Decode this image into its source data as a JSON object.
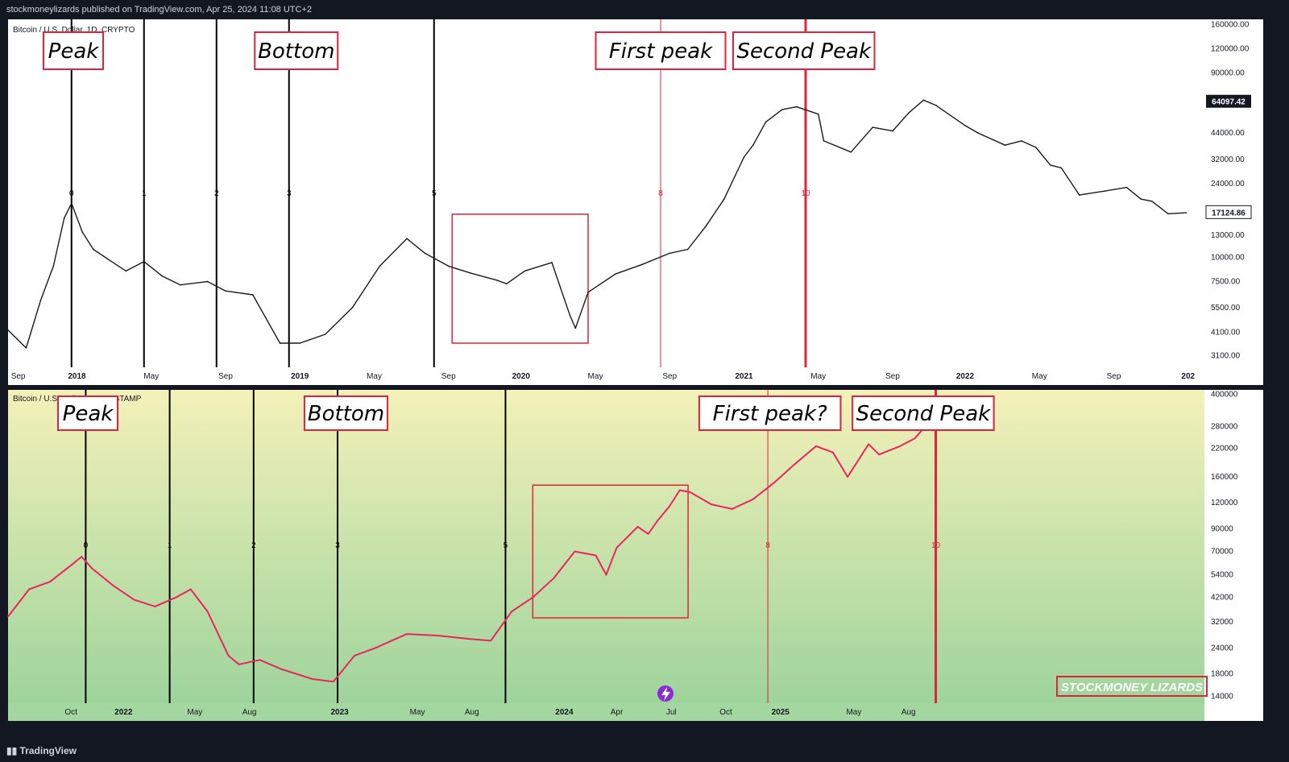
{
  "header": {
    "published": "stockmoneylizards published on TradingView.com, Apr 25, 2024 11:08 UTC+2"
  },
  "footer": {
    "brand": "TradingView"
  },
  "watermark": "STOCKMONEY LIZARDS",
  "colors": {
    "frame": "#131722",
    "red_line": "#e0233a",
    "pink_series": "#e8255f",
    "annotation_border": "#e0233a",
    "grad_top": "#f3f1b9",
    "grad_bottom": "#9ed49c"
  },
  "chart_data": [
    {
      "type": "line",
      "title": "Bitcoin / U.S. Dollar, 1D, CRYPTO",
      "scale": "log",
      "ylim": [
        2700,
        170000
      ],
      "y_ticks": [
        160000,
        120000,
        90000,
        44000,
        32000,
        24000,
        13000,
        10000,
        7500,
        5500,
        4100,
        3100
      ],
      "price_labels": [
        {
          "label": "64097.42",
          "value": 64097,
          "style": "dark"
        },
        {
          "label": "17124.86",
          "value": 17125,
          "style": "light"
        }
      ],
      "time_labels": [
        "Sep",
        "2018",
        "May",
        "Sep",
        "2019",
        "May",
        "Sep",
        "2020",
        "May",
        "Sep",
        "2021",
        "May",
        "Sep",
        "2022",
        "May",
        "Sep",
        "202"
      ],
      "x_ticks": [
        0.06,
        3.3,
        7.4,
        11.5,
        15.6,
        19.7,
        23.8,
        27.8,
        31.9,
        36.0,
        40.1,
        44.2,
        48.3,
        52.3,
        56.4,
        60.5,
        64.6
      ],
      "xlim": [
        -0.5,
        65.5
      ],
      "x": [
        -0.5,
        0.5,
        1.3,
        2.0,
        2.6,
        3.0,
        3.6,
        4.2,
        5.0,
        6.0,
        7.0,
        8.0,
        9.0,
        10.5,
        11.5,
        13.0,
        14.5,
        15.6,
        17.0,
        18.5,
        20.0,
        21.5,
        22.5,
        23.8,
        25.0,
        26.5,
        27.0,
        28.0,
        29.5,
        30.5,
        30.8,
        31.5,
        33.0,
        34.5,
        36.0,
        37.0,
        38.0,
        39.0,
        40.1,
        40.6,
        41.3,
        42.2,
        43.0,
        44.2,
        44.5,
        46.0,
        47.2,
        48.3,
        49.2,
        50.0,
        50.7,
        52.3,
        53.0,
        54.5,
        55.4,
        56.2,
        57.0,
        57.6,
        58.6,
        60.0,
        61.2,
        62.0,
        62.6,
        63.5,
        64.5
      ],
      "y": [
        4200,
        3400,
        6000,
        9000,
        16000,
        19000,
        13500,
        11000,
        9800,
        8500,
        9500,
        8000,
        7200,
        7500,
        6700,
        6400,
        3600,
        3600,
        4000,
        5500,
        9000,
        12500,
        10500,
        9000,
        8300,
        7600,
        7300,
        8500,
        9400,
        5000,
        4300,
        6600,
        8200,
        9200,
        10500,
        11000,
        14500,
        20000,
        33000,
        38000,
        50000,
        58000,
        60000,
        55000,
        40000,
        35000,
        47000,
        45000,
        56000,
        65000,
        61000,
        48000,
        44000,
        38000,
        40000,
        37000,
        30000,
        29000,
        21000,
        22000,
        23000,
        20000,
        19500,
        16800,
        17000
      ],
      "events": [
        {
          "label": "0",
          "x": 3.0,
          "color": "#000000",
          "width": 2
        },
        {
          "label": "1",
          "x": 7.0,
          "color": "#000000",
          "width": 2
        },
        {
          "label": "2",
          "x": 11.0,
          "color": "#000000",
          "width": 2
        },
        {
          "label": "3",
          "x": 15.0,
          "color": "#000000",
          "width": 2
        },
        {
          "label": "5",
          "x": 23.0,
          "color": "#000000",
          "width": 2
        },
        {
          "label": "8",
          "x": 35.5,
          "color": "#e0233a",
          "width": 1
        },
        {
          "label": "10",
          "x": 43.5,
          "color": "#e0233a",
          "width": 3
        }
      ],
      "annotations": [
        {
          "text": "Peak",
          "x": 3.1
        },
        {
          "text": "Bottom",
          "x": 15.4
        },
        {
          "text": "First peak",
          "x": 35.5
        },
        {
          "text": "Second Peak",
          "x": 43.4
        }
      ],
      "box": {
        "x": [
          24.0,
          31.5
        ],
        "y": [
          3600,
          16700
        ]
      }
    },
    {
      "type": "line",
      "title": "Bitcoin / U.S. Dollar, 1D, BITSTAMP",
      "scale": "log",
      "ylim": [
        13000,
        420000
      ],
      "y_ticks": [
        400000,
        280000,
        220000,
        160000,
        120000,
        90000,
        70000,
        54000,
        42000,
        32000,
        24000,
        18000,
        14000
      ],
      "time_labels": [
        "Oct",
        "2022",
        "May",
        "Aug",
        "2023",
        "May",
        "Aug",
        "2024",
        "Apr",
        "Jul",
        "Oct",
        "2025",
        "May",
        "Aug"
      ],
      "x_ticks": [
        2.5,
        5.0,
        8.4,
        11.0,
        15.3,
        19.0,
        21.6,
        26.0,
        28.5,
        31.1,
        33.7,
        36.3,
        39.8,
        42.4
      ],
      "xlim": [
        -0.5,
        56.5
      ],
      "x": [
        -0.5,
        0.5,
        1.5,
        2.5,
        3.0,
        3.5,
        4.5,
        5.5,
        6.5,
        7.5,
        8.2,
        9.0,
        10.0,
        10.5,
        11.5,
        12.5,
        14.0,
        15.0,
        16.0,
        17.0,
        18.5,
        20.0,
        21.5,
        22.5,
        23.5,
        24.5,
        25.5,
        26.5,
        27.5,
        28.0,
        28.5,
        29.5,
        30.0,
        30.5,
        31.0,
        31.5,
        32.0,
        33.0,
        34.0,
        35.0,
        36.0,
        37.0,
        38.0,
        38.8,
        39.5,
        40.5,
        41.0,
        42.0,
        42.7,
        43.2
      ],
      "y": [
        34000,
        46000,
        50000,
        60000,
        66000,
        58000,
        48000,
        41000,
        38000,
        42000,
        46000,
        36000,
        22000,
        20000,
        21000,
        19000,
        17000,
        16500,
        22000,
        24000,
        28000,
        27500,
        26500,
        26000,
        36000,
        42000,
        52000,
        70000,
        67000,
        54000,
        73000,
        92000,
        85000,
        100000,
        115000,
        138000,
        135000,
        118000,
        112000,
        125000,
        150000,
        185000,
        225000,
        210000,
        160000,
        230000,
        205000,
        225000,
        245000,
        280000
      ],
      "events": [
        {
          "label": "0",
          "x": 3.2,
          "color": "#000000",
          "width": 2
        },
        {
          "label": "1",
          "x": 7.2,
          "color": "#000000",
          "width": 2
        },
        {
          "label": "2",
          "x": 11.2,
          "color": "#000000",
          "width": 2
        },
        {
          "label": "3",
          "x": 15.2,
          "color": "#000000",
          "width": 2
        },
        {
          "label": "5",
          "x": 23.2,
          "color": "#000000",
          "width": 2
        },
        {
          "label": "8",
          "x": 35.7,
          "color": "#e0233a",
          "width": 1
        },
        {
          "label": "10",
          "x": 43.7,
          "color": "#e0233a",
          "width": 3
        }
      ],
      "annotations": [
        {
          "text": "Peak",
          "x": 3.3
        },
        {
          "text": "Bottom",
          "x": 15.6
        },
        {
          "text": "First peak?",
          "x": 35.8
        },
        {
          "text": "Second Peak",
          "x": 43.1
        }
      ],
      "box": {
        "x": [
          24.5,
          31.9
        ],
        "y": [
          33500,
          146000
        ]
      }
    }
  ]
}
